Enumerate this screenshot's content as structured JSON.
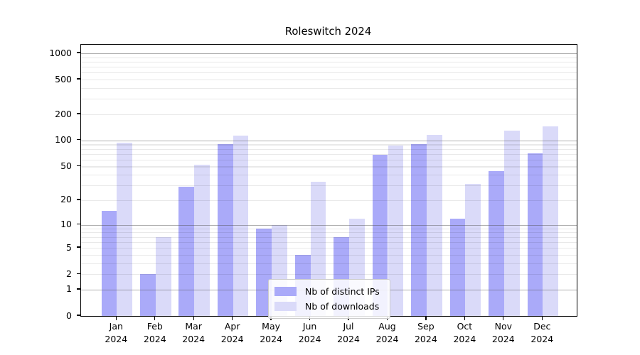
{
  "title": "Roleswitch 2024",
  "chart_data": {
    "type": "bar",
    "title": "Roleswitch 2024",
    "xlabel": "",
    "ylabel": "",
    "yscale": "log1p",
    "ylim": [
      0,
      1251
    ],
    "yticks": [
      0,
      1,
      2,
      5,
      10,
      20,
      50,
      100,
      200,
      500,
      1000
    ],
    "grid": {
      "major_lines": [
        1,
        10,
        100,
        1000
      ],
      "minor_subs": [
        2,
        3,
        4,
        5,
        6,
        7,
        8,
        9
      ]
    },
    "categories": [
      {
        "label": "Jan",
        "sub": "2024"
      },
      {
        "label": "Feb",
        "sub": "2024"
      },
      {
        "label": "Mar",
        "sub": "2024"
      },
      {
        "label": "Apr",
        "sub": "2024"
      },
      {
        "label": "May",
        "sub": "2024"
      },
      {
        "label": "Jun",
        "sub": "2024"
      },
      {
        "label": "Jul",
        "sub": "2024"
      },
      {
        "label": "Aug",
        "sub": "2024"
      },
      {
        "label": "Sep",
        "sub": "2024"
      },
      {
        "label": "Oct",
        "sub": "2024"
      },
      {
        "label": "Nov",
        "sub": "2024"
      },
      {
        "label": "Dec",
        "sub": "2024"
      }
    ],
    "series": [
      {
        "name": "Nb of distinct IPs",
        "color": "#aaaaf9",
        "values": [
          15,
          2,
          29,
          91,
          9,
          4,
          7,
          69,
          91,
          12,
          44,
          71
        ]
      },
      {
        "name": "Nb of downloads",
        "color": "#dadaf9",
        "values": [
          95,
          7,
          52,
          114,
          10,
          33,
          12,
          88,
          115,
          31,
          129,
          145
        ]
      }
    ],
    "legend": {
      "position": "lower-center"
    }
  }
}
